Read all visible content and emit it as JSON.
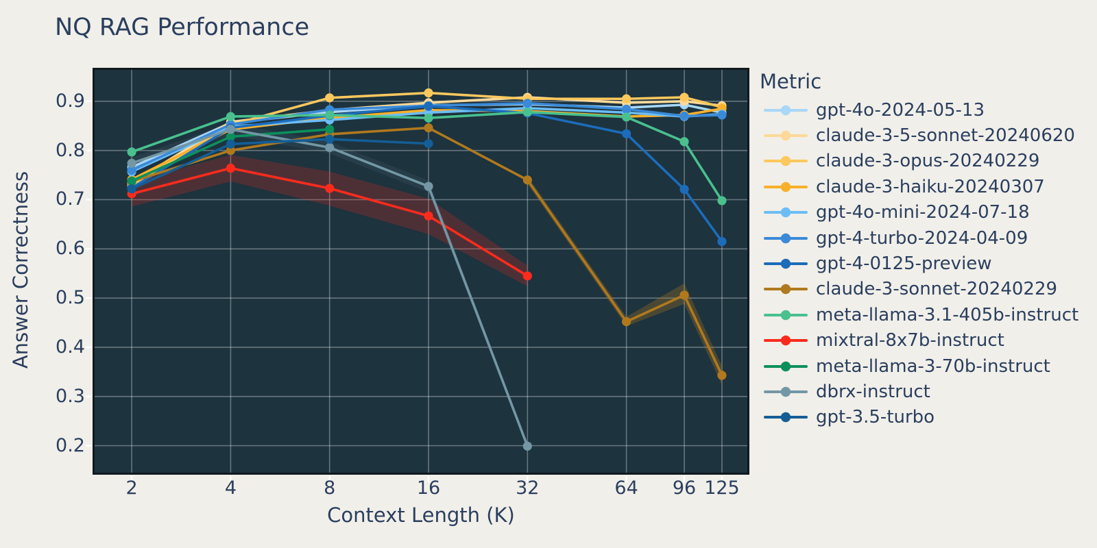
{
  "chart_data": {
    "type": "line",
    "title": "NQ RAG Performance",
    "xlabel": "Context Length (K)",
    "ylabel": "Answer Correctness",
    "legend_title": "Metric",
    "x_scale": "log2",
    "grid": true,
    "legend_position": "right",
    "x_ticks": [
      2,
      4,
      8,
      16,
      32,
      64,
      96,
      125
    ],
    "y_ticks": [
      0.9,
      0.8,
      0.7,
      0.6,
      0.5,
      0.4,
      0.3,
      0.2
    ],
    "x_range_k": [
      1.52,
      151.5
    ],
    "y_range": [
      0.141,
      0.968
    ],
    "colors": {
      "page_background": "#f1efe9",
      "plot_background": "#1d333e",
      "plot_frame": "#10191e",
      "grid_line": "rgba(255,255,255,0.33)",
      "text": "#2a3f5f"
    },
    "series": [
      {
        "name": "gpt-4o-2024-05-13",
        "color": "#a8d7f7",
        "x": [
          2,
          4,
          8,
          16,
          32,
          64,
          96,
          125
        ],
        "y": [
          0.766,
          0.856,
          0.878,
          0.892,
          0.894,
          0.887,
          0.893,
          0.877
        ]
      },
      {
        "name": "claude-3-5-sonnet-20240620",
        "color": "#fcd999",
        "x": [
          2,
          4,
          8,
          16,
          32,
          64,
          96,
          125
        ],
        "y": [
          0.734,
          0.858,
          0.882,
          0.897,
          0.908,
          0.897,
          0.9,
          0.891
        ]
      },
      {
        "name": "claude-3-opus-20240229",
        "color": "#fcc85e",
        "x": [
          2,
          4,
          8,
          16,
          32,
          64,
          96,
          125
        ],
        "y": [
          0.728,
          0.852,
          0.907,
          0.917,
          0.905,
          0.905,
          0.908,
          0.888
        ]
      },
      {
        "name": "claude-3-haiku-20240307",
        "color": "#f8b02b",
        "x": [
          2,
          4,
          8,
          16,
          32,
          64,
          96,
          125
        ],
        "y": [
          0.741,
          0.843,
          0.866,
          0.882,
          0.88,
          0.869,
          0.872,
          0.885
        ]
      },
      {
        "name": "gpt-4o-mini-2024-07-18",
        "color": "#6cbdf5",
        "x": [
          2,
          4,
          8,
          16,
          32,
          64,
          96,
          125
        ],
        "y": [
          0.757,
          0.849,
          0.862,
          0.877,
          0.886,
          0.877,
          0.869,
          0.874
        ]
      },
      {
        "name": "gpt-4-turbo-2024-04-09",
        "color": "#3a8ad8",
        "x": [
          2,
          4,
          8,
          16,
          32,
          64,
          96,
          125
        ],
        "y": [
          0.76,
          0.853,
          0.883,
          0.891,
          0.896,
          0.884,
          0.87,
          0.872
        ]
      },
      {
        "name": "gpt-4-0125-preview",
        "color": "#1c6cba",
        "x": [
          2,
          4,
          8,
          16,
          32,
          64,
          96,
          125
        ],
        "y": [
          0.724,
          0.846,
          0.871,
          0.89,
          0.876,
          0.834,
          0.721,
          0.615
        ]
      },
      {
        "name": "claude-3-sonnet-20240229",
        "color": "#b0791e",
        "x": [
          2,
          4,
          8,
          16,
          32,
          64,
          96,
          125
        ],
        "y": [
          0.737,
          0.8,
          0.833,
          0.846,
          0.74,
          0.452,
          0.506,
          0.343
        ],
        "band_x": [
          32,
          64,
          96,
          125
        ],
        "band_upper": [
          0.748,
          0.462,
          0.53,
          0.362
        ],
        "band_lower": [
          0.732,
          0.443,
          0.488,
          0.324
        ],
        "band_opacity": 0.3
      },
      {
        "name": "meta-llama-3.1-405b-instruct",
        "color": "#49c08e",
        "x": [
          2,
          4,
          8,
          16,
          32,
          64,
          96,
          125
        ],
        "y": [
          0.797,
          0.869,
          0.872,
          0.866,
          0.878,
          0.868,
          0.818,
          0.698
        ]
      },
      {
        "name": "mixtral-8x7b-instruct",
        "color": "#fa2b1c",
        "x": [
          2,
          4,
          8,
          16,
          32
        ],
        "y": [
          0.712,
          0.764,
          0.723,
          0.667,
          0.545
        ],
        "band_x": [
          2,
          4,
          8,
          16,
          32
        ],
        "band_upper": [
          0.737,
          0.791,
          0.757,
          0.702,
          0.566
        ],
        "band_lower": [
          0.686,
          0.737,
          0.688,
          0.63,
          0.524
        ],
        "band_opacity": 0.22
      },
      {
        "name": "meta-llama-3-70b-instruct",
        "color": "#0d8f5c",
        "x": [
          2,
          4,
          8
        ],
        "y": [
          0.738,
          0.828,
          0.843
        ]
      },
      {
        "name": "dbrx-instruct",
        "color": "#7397a5",
        "x": [
          2,
          4,
          8,
          16,
          32
        ],
        "y": [
          0.774,
          0.843,
          0.806,
          0.727,
          0.199
        ],
        "band_x": [
          2,
          4,
          8,
          16,
          32
        ],
        "band_upper": [
          0.786,
          0.855,
          0.818,
          0.739,
          0.205
        ],
        "band_lower": [
          0.762,
          0.831,
          0.794,
          0.715,
          0.193
        ],
        "band_opacity": 0.12
      },
      {
        "name": "gpt-3.5-turbo",
        "color": "#145e96",
        "x": [
          2,
          4,
          8,
          16
        ],
        "y": [
          0.722,
          0.813,
          0.823,
          0.814
        ]
      }
    ]
  }
}
